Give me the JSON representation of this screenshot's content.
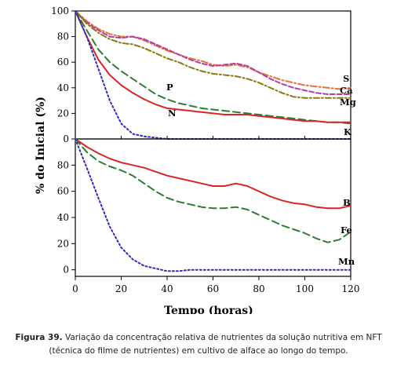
{
  "figure": {
    "ylabel": "% do Inicial (%)",
    "xlabel": "Tempo (horas)",
    "caption_label": "Figura 39.",
    "caption_line1": "Variação da concentração relativa de nutrientes da solução nutritiva em NFT",
    "caption_line2": "(técnica do filme de nutrientes) em cultivo de alface ao longo do tempo."
  },
  "chart_data": [
    {
      "type": "line",
      "panel": "top",
      "xlim": [
        0,
        120
      ],
      "ylim": [
        0,
        100
      ],
      "x_ticks": [
        0,
        20,
        40,
        60,
        80,
        100,
        120
      ],
      "y_ticks": [
        0,
        20,
        40,
        60,
        80,
        100
      ],
      "grid": false,
      "series": [
        {
          "name": "S",
          "color": "#e8703a",
          "dash": "8 3 2 3",
          "x": [
            0,
            5,
            10,
            15,
            20,
            25,
            30,
            35,
            40,
            45,
            50,
            55,
            60,
            65,
            70,
            75,
            80,
            85,
            90,
            95,
            100,
            105,
            110,
            115,
            120
          ],
          "y": [
            100,
            92,
            86,
            82,
            80,
            80,
            77,
            73,
            69,
            66,
            63,
            61,
            58,
            57,
            58,
            56,
            52,
            49,
            46,
            44,
            42,
            41,
            40,
            39,
            40
          ]
        },
        {
          "name": "Ca",
          "color": "#b040a0",
          "dash": "6 3",
          "x": [
            0,
            5,
            10,
            15,
            20,
            25,
            30,
            35,
            40,
            45,
            50,
            55,
            60,
            65,
            70,
            75,
            80,
            85,
            90,
            95,
            100,
            105,
            110,
            115,
            120
          ],
          "y": [
            100,
            91,
            85,
            80,
            79,
            80,
            78,
            74,
            70,
            66,
            62,
            59,
            57,
            58,
            59,
            57,
            52,
            47,
            43,
            40,
            38,
            36,
            35,
            35,
            35
          ]
        },
        {
          "name": "Mg",
          "color": "#8a7a10",
          "dash": "7 3 2 3",
          "x": [
            0,
            5,
            10,
            15,
            20,
            25,
            30,
            35,
            40,
            45,
            50,
            55,
            60,
            65,
            70,
            75,
            80,
            85,
            90,
            95,
            100,
            105,
            110,
            115,
            120
          ],
          "y": [
            100,
            90,
            83,
            78,
            75,
            74,
            71,
            67,
            63,
            60,
            56,
            53,
            51,
            50,
            49,
            47,
            44,
            40,
            36,
            33,
            32,
            32,
            32,
            32,
            32
          ]
        },
        {
          "name": "P",
          "color": "#2e7d32",
          "dash": "9 5",
          "x": [
            0,
            5,
            10,
            15,
            20,
            25,
            30,
            35,
            40,
            45,
            50,
            55,
            60,
            65,
            70,
            75,
            80,
            85,
            90,
            95,
            100,
            105,
            110,
            115,
            120
          ],
          "y": [
            100,
            85,
            70,
            60,
            53,
            47,
            41,
            35,
            31,
            28,
            26,
            24,
            23,
            22,
            21,
            20,
            19,
            18,
            17,
            16,
            15,
            14,
            13,
            13,
            12
          ]
        },
        {
          "name": "N",
          "color": "#d62728",
          "dash": "",
          "x": [
            0,
            5,
            10,
            15,
            20,
            25,
            30,
            35,
            40,
            45,
            50,
            55,
            60,
            65,
            70,
            75,
            80,
            85,
            90,
            95,
            100,
            105,
            110,
            115,
            120
          ],
          "y": [
            100,
            80,
            62,
            50,
            42,
            36,
            31,
            27,
            24,
            23,
            22,
            21,
            20,
            19,
            19,
            19,
            18,
            17,
            16,
            15,
            14,
            14,
            13,
            13,
            13
          ]
        },
        {
          "name": "K",
          "color": "#2b2bbf",
          "dash": "2 3",
          "x": [
            0,
            5,
            10,
            15,
            20,
            25,
            30,
            35,
            40,
            45,
            50,
            55,
            60,
            65,
            70,
            75,
            80,
            85,
            90,
            95,
            100,
            105,
            110,
            115,
            120
          ],
          "y": [
            100,
            80,
            55,
            30,
            12,
            4,
            2,
            1,
            0,
            0,
            0,
            0,
            0,
            0,
            0,
            0,
            0,
            0,
            0,
            0,
            0,
            0,
            0,
            0,
            0
          ]
        }
      ]
    },
    {
      "type": "line",
      "panel": "bottom",
      "xlim": [
        0,
        120
      ],
      "ylim": [
        -5,
        100
      ],
      "x_ticks": [
        0,
        20,
        40,
        60,
        80,
        100,
        120
      ],
      "y_ticks": [
        0,
        20,
        40,
        60,
        80
      ],
      "grid": false,
      "series": [
        {
          "name": "B",
          "color": "#d62728",
          "dash": "",
          "x": [
            0,
            5,
            10,
            15,
            20,
            25,
            30,
            35,
            40,
            45,
            50,
            55,
            60,
            65,
            70,
            75,
            80,
            85,
            90,
            95,
            100,
            105,
            110,
            115,
            120
          ],
          "y": [
            100,
            94,
            89,
            85,
            82,
            80,
            78,
            75,
            72,
            70,
            68,
            66,
            64,
            64,
            66,
            64,
            60,
            56,
            53,
            51,
            50,
            48,
            47,
            47,
            49
          ]
        },
        {
          "name": "Fe",
          "color": "#2e7d32",
          "dash": "9 5",
          "x": [
            0,
            5,
            10,
            15,
            20,
            25,
            30,
            35,
            40,
            45,
            50,
            55,
            60,
            65,
            70,
            75,
            80,
            85,
            90,
            95,
            100,
            105,
            110,
            115,
            120
          ],
          "y": [
            100,
            90,
            83,
            79,
            76,
            72,
            66,
            60,
            55,
            52,
            50,
            48,
            47,
            47,
            48,
            46,
            42,
            38,
            34,
            31,
            28,
            24,
            21,
            23,
            29
          ]
        },
        {
          "name": "Mn",
          "color": "#2b2bbf",
          "dash": "2 3",
          "x": [
            0,
            5,
            10,
            15,
            20,
            25,
            30,
            35,
            40,
            45,
            50,
            55,
            60,
            65,
            70,
            75,
            80,
            85,
            90,
            95,
            100,
            105,
            110,
            115,
            120
          ],
          "y": [
            100,
            78,
            55,
            33,
            17,
            8,
            3,
            1,
            -1,
            -1,
            0,
            0,
            0,
            0,
            0,
            0,
            0,
            0,
            0,
            0,
            0,
            0,
            0,
            0,
            0
          ]
        }
      ]
    }
  ]
}
